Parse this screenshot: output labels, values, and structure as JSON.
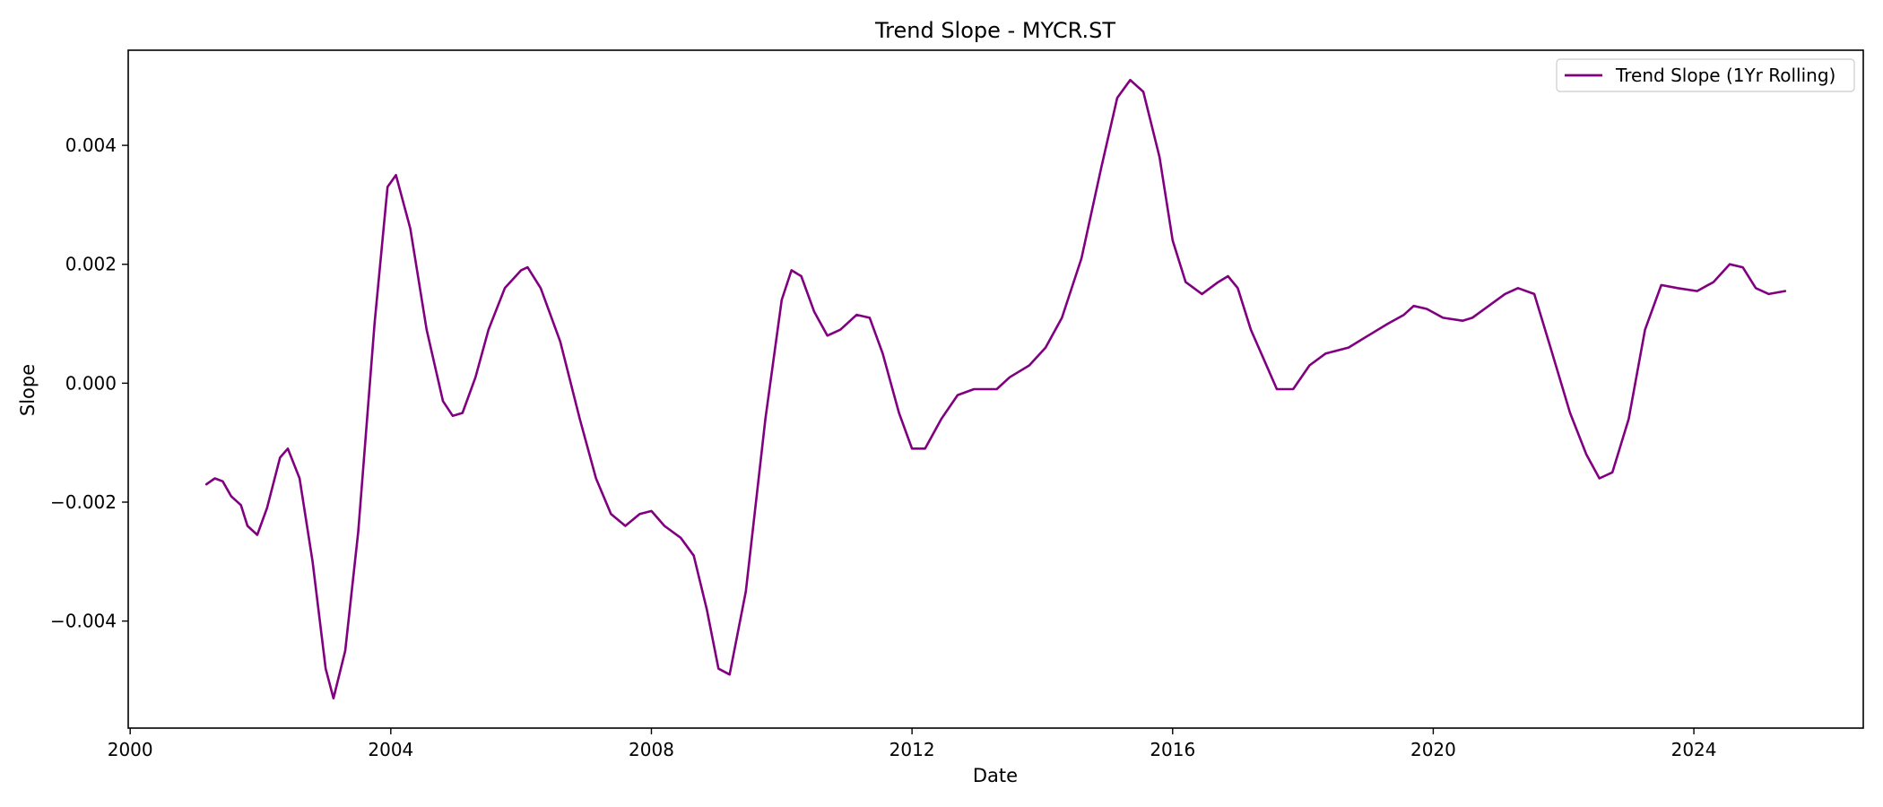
{
  "chart_data": {
    "type": "line",
    "title": "Trend Slope - MYCR.ST",
    "xlabel": "Date",
    "ylabel": "Slope",
    "x_ticks": [
      2000,
      2004,
      2008,
      2012,
      2016,
      2020,
      2024
    ],
    "x_tick_labels": [
      "2000",
      "2004",
      "2008",
      "2012",
      "2016",
      "2020",
      "2024"
    ],
    "y_ticks": [
      -0.004,
      -0.002,
      0.0,
      0.002,
      0.004
    ],
    "y_tick_labels": [
      "−0.004",
      "−0.002",
      "0.000",
      "0.002",
      "0.004"
    ],
    "xlim": [
      1999.97,
      2026.6
    ],
    "ylim": [
      -0.0058,
      0.0056
    ],
    "grid": false,
    "legend_position": "top-right",
    "series": [
      {
        "name": "Trend Slope (1Yr Rolling)",
        "color": "#800080",
        "x": [
          2001.17,
          2001.3,
          2001.42,
          2001.55,
          2001.7,
          2001.8,
          2001.95,
          2002.1,
          2002.3,
          2002.42,
          2002.6,
          2002.8,
          2003.0,
          2003.12,
          2003.3,
          2003.5,
          2003.75,
          2003.95,
          2004.08,
          2004.3,
          2004.55,
          2004.8,
          2004.95,
          2005.1,
          2005.3,
          2005.5,
          2005.75,
          2006.0,
          2006.1,
          2006.3,
          2006.6,
          2006.9,
          2007.15,
          2007.38,
          2007.6,
          2007.82,
          2008.0,
          2008.2,
          2008.45,
          2008.65,
          2008.85,
          2009.03,
          2009.2,
          2009.45,
          2009.75,
          2010.0,
          2010.15,
          2010.3,
          2010.5,
          2010.7,
          2010.9,
          2011.15,
          2011.35,
          2011.55,
          2011.8,
          2012.0,
          2012.2,
          2012.45,
          2012.7,
          2012.95,
          2013.3,
          2013.5,
          2013.8,
          2014.05,
          2014.3,
          2014.6,
          2014.9,
          2015.15,
          2015.35,
          2015.55,
          2015.8,
          2016.0,
          2016.2,
          2016.45,
          2016.7,
          2016.85,
          2017.0,
          2017.2,
          2017.4,
          2017.6,
          2017.85,
          2018.1,
          2018.35,
          2018.7,
          2019.0,
          2019.3,
          2019.55,
          2019.7,
          2019.9,
          2020.15,
          2020.45,
          2020.6,
          2020.85,
          2021.1,
          2021.3,
          2021.55,
          2021.8,
          2022.1,
          2022.35,
          2022.55,
          2022.75,
          2023.0,
          2023.25,
          2023.5,
          2023.75,
          2024.05,
          2024.3,
          2024.55,
          2024.75,
          2024.95,
          2025.15,
          2025.4
        ],
        "values": [
          -0.0017,
          -0.0016,
          -0.00165,
          -0.0019,
          -0.00205,
          -0.0024,
          -0.00255,
          -0.0021,
          -0.00125,
          -0.0011,
          -0.0016,
          -0.003,
          -0.0048,
          -0.0053,
          -0.0045,
          -0.0025,
          0.001,
          0.0033,
          0.0035,
          0.0026,
          0.0009,
          -0.0003,
          -0.00055,
          -0.0005,
          0.0001,
          0.0009,
          0.0016,
          0.0019,
          0.00195,
          0.0016,
          0.0007,
          -0.0006,
          -0.0016,
          -0.0022,
          -0.0024,
          -0.0022,
          -0.00215,
          -0.0024,
          -0.0026,
          -0.0029,
          -0.0038,
          -0.0048,
          -0.0049,
          -0.0035,
          -0.0006,
          0.0014,
          0.0019,
          0.0018,
          0.0012,
          0.0008,
          0.0009,
          0.00115,
          0.0011,
          0.0005,
          -0.0005,
          -0.0011,
          -0.0011,
          -0.0006,
          -0.0002,
          -0.0001,
          -0.0001,
          0.0001,
          0.0003,
          0.0006,
          0.0011,
          0.0021,
          0.0036,
          0.0048,
          0.0051,
          0.0049,
          0.0038,
          0.0024,
          0.0017,
          0.0015,
          0.0017,
          0.0018,
          0.0016,
          0.0009,
          0.0004,
          -0.0001,
          -0.0001,
          0.0003,
          0.0005,
          0.0006,
          0.0008,
          0.001,
          0.00115,
          0.0013,
          0.00125,
          0.0011,
          0.00105,
          0.0011,
          0.0013,
          0.0015,
          0.0016,
          0.0015,
          0.0006,
          -0.0005,
          -0.0012,
          -0.0016,
          -0.0015,
          -0.0006,
          0.0009,
          0.00165,
          0.0016,
          0.00155,
          0.0017,
          0.002,
          0.00195,
          0.0016,
          0.0015,
          0.00155
        ]
      }
    ]
  }
}
